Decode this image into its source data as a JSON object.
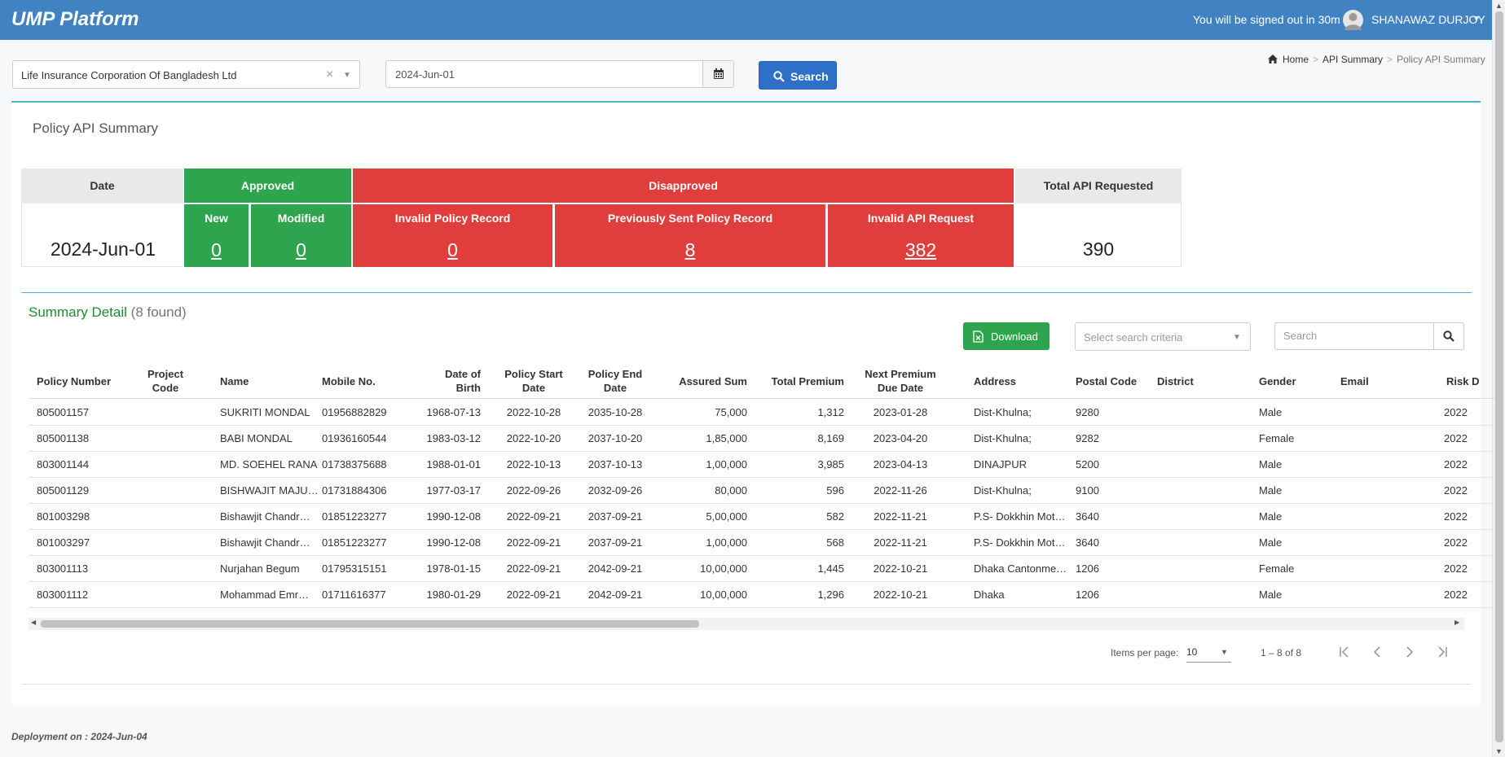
{
  "header": {
    "brand": "UMP Platform",
    "signout_notice": "You will be signed out in 30m",
    "user_name": "SHANAWAZ DURJOY"
  },
  "filters": {
    "organization": "Life Insurance Corporation Of Bangladesh Ltd",
    "date": "2024-Jun-01",
    "search_label": "Search"
  },
  "breadcrumb": {
    "home": "Home",
    "api_summary": "API Summary",
    "current": "Policy API Summary"
  },
  "page": {
    "title": "Policy API Summary"
  },
  "summary": {
    "date_header": "Date",
    "approved_header": "Approved",
    "disapproved_header": "Disapproved",
    "total_header": "Total API Requested",
    "new_label": "New",
    "modified_label": "Modified",
    "invalid_policy_label": "Invalid Policy Record",
    "prev_sent_label": "Previously Sent Policy Record",
    "invalid_api_label": "Invalid API Request",
    "date": "2024-Jun-01",
    "new": "0",
    "modified": "0",
    "invalid_policy": "0",
    "prev_sent": "8",
    "invalid_api": "382",
    "total": "390"
  },
  "detail": {
    "title": "Summary Detail",
    "count": "(8 found)",
    "download_label": "Download",
    "criteria_placeholder": "Select search criteria",
    "search_placeholder": "Search",
    "columns": [
      "Policy Number",
      "Project Code",
      "Name",
      "Mobile No.",
      "Date of Birth",
      "Policy Start Date",
      "Policy End Date",
      "Assured Sum",
      "Total Premium",
      "Next Premium Due Date",
      "Address",
      "Postal Code",
      "District",
      "Gender",
      "Email",
      "Risk D"
    ],
    "rows": [
      {
        "policy": "805001157",
        "project": "",
        "name": "SUKRITI MONDAL",
        "mobile": "01956882829",
        "dob": "1968-07-13",
        "start": "2022-10-28",
        "end": "2035-10-28",
        "assured": "75,000",
        "premium": "1,312",
        "due": "2023-01-28",
        "address": "Dist-Khulna;",
        "postal": "9280",
        "district": "",
        "gender": "Male",
        "email": "",
        "risk": "2022"
      },
      {
        "policy": "805001138",
        "project": "",
        "name": "BABI MONDAL",
        "mobile": "01936160544",
        "dob": "1983-03-12",
        "start": "2022-10-20",
        "end": "2037-10-20",
        "assured": "1,85,000",
        "premium": "8,169",
        "due": "2023-04-20",
        "address": "Dist-Khulna;",
        "postal": "9282",
        "district": "",
        "gender": "Female",
        "email": "",
        "risk": "2022"
      },
      {
        "policy": "803001144",
        "project": "",
        "name": "MD. SOEHEL RANA",
        "mobile": "01738375688",
        "dob": "1988-01-01",
        "start": "2022-10-13",
        "end": "2037-10-13",
        "assured": "1,00,000",
        "premium": "3,985",
        "due": "2023-04-13",
        "address": "DINAJPUR",
        "postal": "5200",
        "district": "",
        "gender": "Male",
        "email": "",
        "risk": "2022"
      },
      {
        "policy": "805001129",
        "project": "",
        "name": "BISHWAJIT MAJU…",
        "mobile": "01731884306",
        "dob": "1977-03-17",
        "start": "2022-09-26",
        "end": "2032-09-26",
        "assured": "80,000",
        "premium": "596",
        "due": "2022-11-26",
        "address": "Dist-Khulna;",
        "postal": "9100",
        "district": "",
        "gender": "Male",
        "email": "",
        "risk": "2022"
      },
      {
        "policy": "801003298",
        "project": "",
        "name": "Bishawjit Chandr…",
        "mobile": "01851223277",
        "dob": "1990-12-08",
        "start": "2022-09-21",
        "end": "2037-09-21",
        "assured": "5,00,000",
        "premium": "582",
        "due": "2022-11-21",
        "address": "P.S- Dokkhin Mot…",
        "postal": "3640",
        "district": "",
        "gender": "Male",
        "email": "",
        "risk": "2022"
      },
      {
        "policy": "801003297",
        "project": "",
        "name": "Bishawjit Chandr…",
        "mobile": "01851223277",
        "dob": "1990-12-08",
        "start": "2022-09-21",
        "end": "2037-09-21",
        "assured": "1,00,000",
        "premium": "568",
        "due": "2022-11-21",
        "address": "P.S- Dokkhin Mot…",
        "postal": "3640",
        "district": "",
        "gender": "Male",
        "email": "",
        "risk": "2022"
      },
      {
        "policy": "803001113",
        "project": "",
        "name": "Nurjahan Begum",
        "mobile": "01795315151",
        "dob": "1978-01-15",
        "start": "2022-09-21",
        "end": "2042-09-21",
        "assured": "10,00,000",
        "premium": "1,445",
        "due": "2022-10-21",
        "address": "Dhaka Cantonme…",
        "postal": "1206",
        "district": "",
        "gender": "Female",
        "email": "",
        "risk": "2022"
      },
      {
        "policy": "803001112",
        "project": "",
        "name": "Mohammad Emr…",
        "mobile": "01711616377",
        "dob": "1980-01-29",
        "start": "2022-09-21",
        "end": "2042-09-21",
        "assured": "10,00,000",
        "premium": "1,296",
        "due": "2022-10-21",
        "address": "Dhaka",
        "postal": "1206",
        "district": "",
        "gender": "Male",
        "email": "",
        "risk": "2022"
      }
    ]
  },
  "paginator": {
    "items_label": "Items per page:",
    "page_size": "10",
    "range": "1 – 8 of 8"
  },
  "footer": {
    "deployment": "Deployment on : 2024-Jun-04"
  }
}
